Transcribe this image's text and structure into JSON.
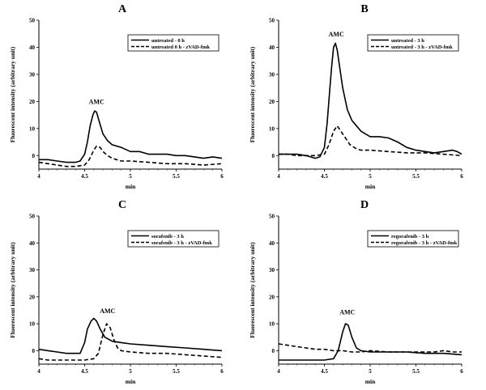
{
  "chart_data": [
    {
      "panel": "A",
      "type": "line",
      "xlabel": "min",
      "ylabel": "Fluorescent intensity (arbitrary unit)",
      "xlim": [
        4,
        6
      ],
      "ylim": [
        -5,
        50
      ],
      "xticks": [
        "4",
        "4.5",
        "5",
        "5.5",
        "6"
      ],
      "yticks": [
        "0",
        "10",
        "20",
        "30",
        "40",
        "50"
      ],
      "legend_position": "top-right",
      "annotation": {
        "text": "AMC",
        "x": 4.63,
        "y": 19
      },
      "series": [
        {
          "name": "untreated - 0 h",
          "style": "solid",
          "x": [
            4.0,
            4.1,
            4.2,
            4.3,
            4.4,
            4.45,
            4.5,
            4.53,
            4.56,
            4.59,
            4.61,
            4.63,
            4.66,
            4.7,
            4.75,
            4.8,
            4.9,
            5.0,
            5.1,
            5.2,
            5.3,
            5.4,
            5.5,
            5.6,
            5.7,
            5.8,
            5.9,
            6.0
          ],
          "y": [
            -1.5,
            -1.5,
            -2,
            -2.5,
            -2.5,
            -2,
            0.5,
            5,
            11,
            15,
            16.5,
            16,
            12.5,
            8,
            5.5,
            4,
            3,
            1.5,
            1.5,
            0.5,
            0.5,
            0.5,
            0,
            0,
            -0.5,
            -1,
            -0.5,
            -1
          ]
        },
        {
          "name": "untreated 0 h - zVAD-fmk",
          "style": "dashed",
          "x": [
            4.0,
            4.1,
            4.2,
            4.3,
            4.4,
            4.5,
            4.55,
            4.6,
            4.63,
            4.67,
            4.7,
            4.75,
            4.8,
            4.9,
            5.0,
            5.2,
            5.4,
            5.6,
            5.8,
            6.0
          ],
          "y": [
            -2.5,
            -3,
            -3.5,
            -4,
            -4,
            -3.5,
            -1.5,
            2,
            3.5,
            3,
            1.5,
            0,
            -1,
            -2,
            -2,
            -2.5,
            -3,
            -3,
            -3.5,
            -3
          ]
        }
      ]
    },
    {
      "panel": "B",
      "type": "line",
      "xlabel": "min",
      "ylabel": "Fluorescent intensity (arbitrary unit)",
      "xlim": [
        4,
        6
      ],
      "ylim": [
        -5,
        50
      ],
      "xticks": [
        "4",
        "4.5",
        "5",
        "5.5",
        "6"
      ],
      "yticks": [
        "0",
        "10",
        "20",
        "30",
        "40",
        "50"
      ],
      "legend_position": "top-right",
      "annotation": {
        "text": "AMC",
        "x": 4.63,
        "y": 44
      },
      "series": [
        {
          "name": "untreated - 3 h",
          "style": "solid",
          "x": [
            4.0,
            4.1,
            4.2,
            4.3,
            4.4,
            4.45,
            4.5,
            4.53,
            4.56,
            4.58,
            4.6,
            4.62,
            4.64,
            4.67,
            4.7,
            4.75,
            4.8,
            4.9,
            5.0,
            5.1,
            5.2,
            5.3,
            5.4,
            5.5,
            5.6,
            5.7,
            5.8,
            5.9,
            5.95,
            6.0
          ],
          "y": [
            0.5,
            0.5,
            0.5,
            0,
            -1,
            -0.5,
            3,
            12,
            25,
            33,
            40,
            41.5,
            39,
            32,
            25,
            17,
            13,
            9,
            7,
            7,
            6.5,
            5,
            3,
            2,
            1.5,
            1,
            1.5,
            2,
            1.5,
            0.5
          ]
        },
        {
          "name": "untreated - 3 h - zVAD-fmk",
          "style": "dashed",
          "x": [
            4.0,
            4.1,
            4.2,
            4.3,
            4.4,
            4.5,
            4.55,
            4.6,
            4.64,
            4.68,
            4.72,
            4.78,
            4.85,
            4.9,
            5.0,
            5.2,
            5.4,
            5.6,
            5.8,
            6.0
          ],
          "y": [
            0.5,
            0.5,
            0,
            0,
            0,
            0.5,
            4,
            9,
            11,
            9,
            7,
            4,
            2.5,
            2,
            2,
            1.5,
            1,
            1,
            0.5,
            0
          ]
        }
      ]
    },
    {
      "panel": "C",
      "type": "line",
      "xlabel": "min",
      "ylabel": "Fluorescent intensity (arbitrary unit)",
      "xlim": [
        4,
        6
      ],
      "ylim": [
        -5,
        50
      ],
      "xticks": [
        "4",
        "4.5",
        "5",
        "5.5",
        "6"
      ],
      "yticks": [
        "0",
        "10",
        "20",
        "30",
        "40",
        "50"
      ],
      "legend_position": "top-right",
      "annotation": {
        "text": "AMC",
        "x": 4.75,
        "y": 14
      },
      "series": [
        {
          "name": "sorafenib - 3 h",
          "style": "solid",
          "x": [
            4.0,
            4.1,
            4.2,
            4.3,
            4.4,
            4.45,
            4.5,
            4.53,
            4.57,
            4.6,
            4.63,
            4.67,
            4.72,
            4.8,
            4.9,
            5.0,
            5.2,
            5.4,
            5.6,
            5.8,
            6.0
          ],
          "y": [
            0.5,
            0,
            -0.5,
            -1,
            -1,
            -1,
            3,
            8,
            11,
            12,
            11,
            8,
            5,
            3.5,
            3,
            2.5,
            2,
            1.5,
            1,
            0.5,
            0
          ]
        },
        {
          "name": "sorafenib - 3 h - zVAD-fmk",
          "style": "dashed",
          "x": [
            4.0,
            4.1,
            4.2,
            4.3,
            4.4,
            4.5,
            4.6,
            4.65,
            4.7,
            4.74,
            4.78,
            4.82,
            4.86,
            4.9,
            5.0,
            5.2,
            5.4,
            5.6,
            5.8,
            6.0
          ],
          "y": [
            -3,
            -3.5,
            -3.5,
            -3.5,
            -3.5,
            -3.5,
            -3,
            -1,
            6,
            10,
            8.5,
            4,
            1,
            0,
            -0.5,
            -1,
            -1,
            -1.5,
            -2,
            -2.5
          ]
        }
      ]
    },
    {
      "panel": "D",
      "type": "line",
      "xlabel": "min",
      "ylabel": "Fluorescent intensity (arbitrary unit)",
      "xlim": [
        4,
        6
      ],
      "ylim": [
        -5,
        50
      ],
      "xticks": [
        "4",
        "4.5",
        "5",
        "5.5",
        "6"
      ],
      "yticks": [
        "0",
        "10",
        "20",
        "30",
        "40",
        "50"
      ],
      "legend_position": "top-right",
      "annotation": {
        "text": "AMC",
        "x": 4.75,
        "y": 13.5
      },
      "series": [
        {
          "name": "regorafenib - 3 h",
          "style": "solid",
          "x": [
            4.0,
            4.1,
            4.2,
            4.3,
            4.4,
            4.5,
            4.6,
            4.65,
            4.7,
            4.73,
            4.76,
            4.8,
            4.85,
            4.9,
            5.0,
            5.2,
            5.4,
            5.6,
            5.8,
            6.0
          ],
          "y": [
            -3.5,
            -3.5,
            -3.5,
            -3.5,
            -3.5,
            -3.5,
            -3,
            0,
            7,
            10,
            9.5,
            5,
            1,
            0,
            -0.5,
            -0.5,
            -0.5,
            -1,
            -1,
            -1.5
          ]
        },
        {
          "name": "regorafenib - 3 h - zVAD-fmk",
          "style": "dashed",
          "x": [
            4.0,
            4.1,
            4.2,
            4.3,
            4.4,
            4.5,
            4.6,
            4.7,
            4.8,
            4.9,
            5.0,
            5.2,
            5.4,
            5.6,
            5.7,
            5.8,
            5.9,
            6.0
          ],
          "y": [
            2.5,
            2,
            1.5,
            1,
            0.5,
            0.5,
            0,
            0,
            -0.5,
            -0.5,
            0,
            -0.5,
            -0.5,
            -0.5,
            -0.5,
            0,
            -0.5,
            -0.5
          ]
        }
      ]
    }
  ]
}
